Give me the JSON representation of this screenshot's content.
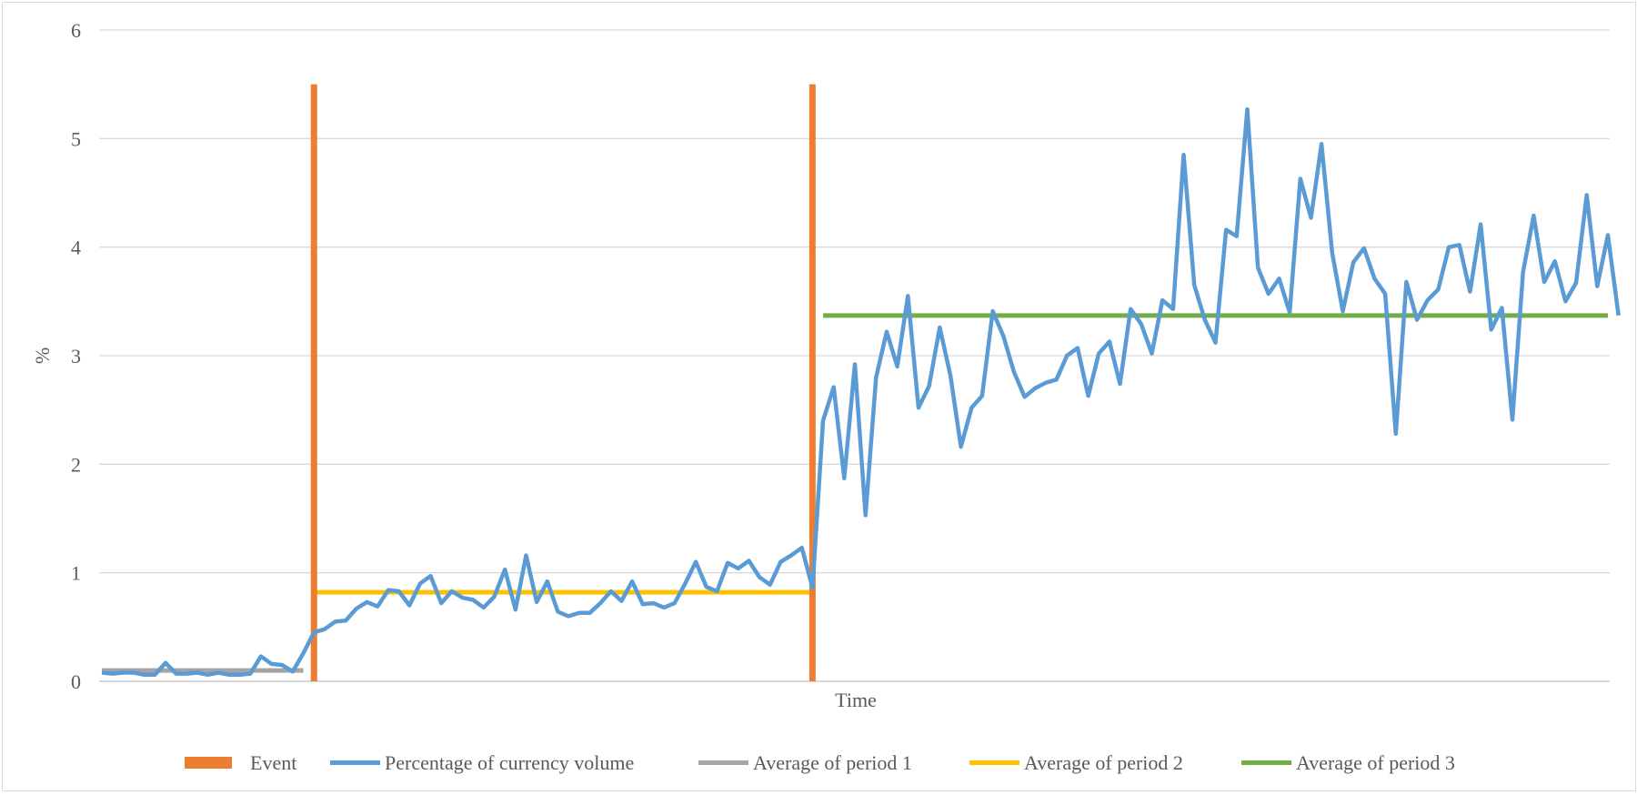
{
  "chart_data": {
    "type": "line",
    "title": "",
    "xlabel": "Time",
    "ylabel": "%",
    "ylim": [
      0,
      6
    ],
    "yticks": [
      0,
      1,
      2,
      3,
      4,
      5,
      6
    ],
    "grid": true,
    "legend_position": "bottom",
    "x_count": 143,
    "events": [
      {
        "name": "Event",
        "x": 20,
        "height": 5.5
      },
      {
        "name": "Event",
        "x": 67,
        "height": 5.5
      }
    ],
    "series": [
      {
        "name": "Percentage of currency volume",
        "color": "#5B9BD5",
        "values": [
          0.08,
          0.07,
          0.08,
          0.08,
          0.06,
          0.06,
          0.17,
          0.07,
          0.07,
          0.08,
          0.06,
          0.08,
          0.06,
          0.06,
          0.07,
          0.23,
          0.16,
          0.15,
          0.09,
          0.26,
          0.45,
          0.48,
          0.55,
          0.56,
          0.67,
          0.73,
          0.69,
          0.84,
          0.83,
          0.7,
          0.9,
          0.97,
          0.72,
          0.83,
          0.77,
          0.75,
          0.68,
          0.78,
          1.03,
          0.66,
          1.16,
          0.73,
          0.92,
          0.64,
          0.6,
          0.63,
          0.63,
          0.72,
          0.83,
          0.74,
          0.92,
          0.71,
          0.72,
          0.68,
          0.72,
          0.9,
          1.1,
          0.87,
          0.83,
          1.09,
          1.04,
          1.11,
          0.96,
          0.89,
          1.1,
          1.16,
          1.23,
          0.86,
          2.4,
          2.71,
          1.87,
          2.92,
          1.53,
          2.8,
          3.22,
          2.9,
          3.55,
          2.52,
          2.72,
          3.26,
          2.82,
          2.16,
          2.52,
          2.63,
          3.41,
          3.18,
          2.85,
          2.62,
          2.7,
          2.75,
          2.78,
          3.0,
          3.07,
          2.63,
          3.02,
          3.13,
          2.74,
          3.43,
          3.29,
          3.02,
          3.51,
          3.43,
          4.85,
          3.65,
          3.33,
          3.12,
          4.16,
          4.1,
          5.27,
          3.81,
          3.57,
          3.71,
          3.4,
          4.63,
          4.27,
          4.95,
          3.95,
          3.41,
          3.86,
          3.99,
          3.71,
          3.57,
          2.28,
          3.68,
          3.33,
          3.51,
          3.61,
          4.0,
          4.02,
          3.59,
          4.21,
          3.24,
          3.44,
          2.41,
          3.77,
          4.29,
          3.68,
          3.87,
          3.5,
          3.67,
          4.48,
          3.64,
          4.11,
          3.37
        ]
      },
      {
        "name": "Average of period 1",
        "color": "#A5A5A5",
        "value": 0.1,
        "x_start": 0,
        "x_end": 19
      },
      {
        "name": "Average of period 2",
        "color": "#FFC000",
        "value": 0.82,
        "x_start": 20,
        "x_end": 67
      },
      {
        "name": "Average of period 3",
        "color": "#70AD47",
        "value": 3.37,
        "x_start": 68,
        "x_end": 142
      }
    ],
    "legend": [
      {
        "label": "Event",
        "color": "#ED7D31",
        "shape": "bar"
      },
      {
        "label": "Percentage of currency volume",
        "color": "#5B9BD5",
        "shape": "line"
      },
      {
        "label": "Average of period 1",
        "color": "#A5A5A5",
        "shape": "line"
      },
      {
        "label": "Average of period 2",
        "color": "#FFC000",
        "shape": "line"
      },
      {
        "label": "Average of period 3",
        "color": "#70AD47",
        "shape": "line"
      }
    ]
  }
}
